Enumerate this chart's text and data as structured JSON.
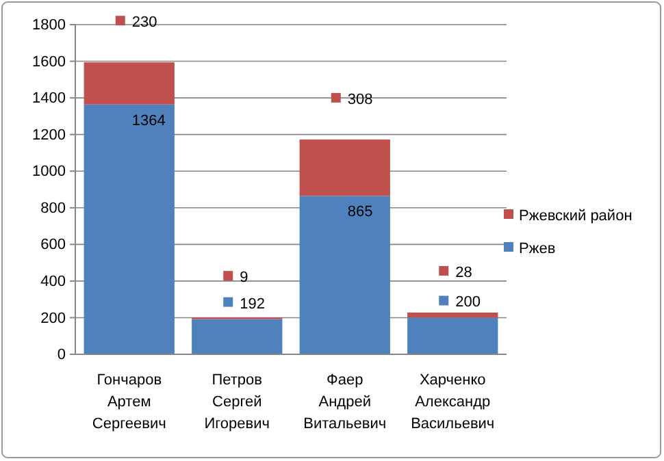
{
  "chart_data": {
    "type": "bar",
    "stacked": true,
    "categories": [
      "Гончаров Артем Сергеевич",
      "Петров Сергей Игоревич",
      "Фаер Андрей Витальевич",
      "Харченко Александр Васильевич"
    ],
    "series": [
      {
        "name": "Ржев",
        "color": "#4f81bd",
        "values": [
          1364,
          192,
          865,
          200
        ]
      },
      {
        "name": "Ржевский район",
        "color": "#c0504d",
        "values": [
          230,
          9,
          308,
          28
        ]
      }
    ],
    "ylim": [
      0,
      1800
    ],
    "yticks": [
      0,
      200,
      400,
      600,
      800,
      1000,
      1200,
      1400,
      1600,
      1800
    ],
    "grid": "y",
    "legend": "right",
    "data_labels": true
  }
}
